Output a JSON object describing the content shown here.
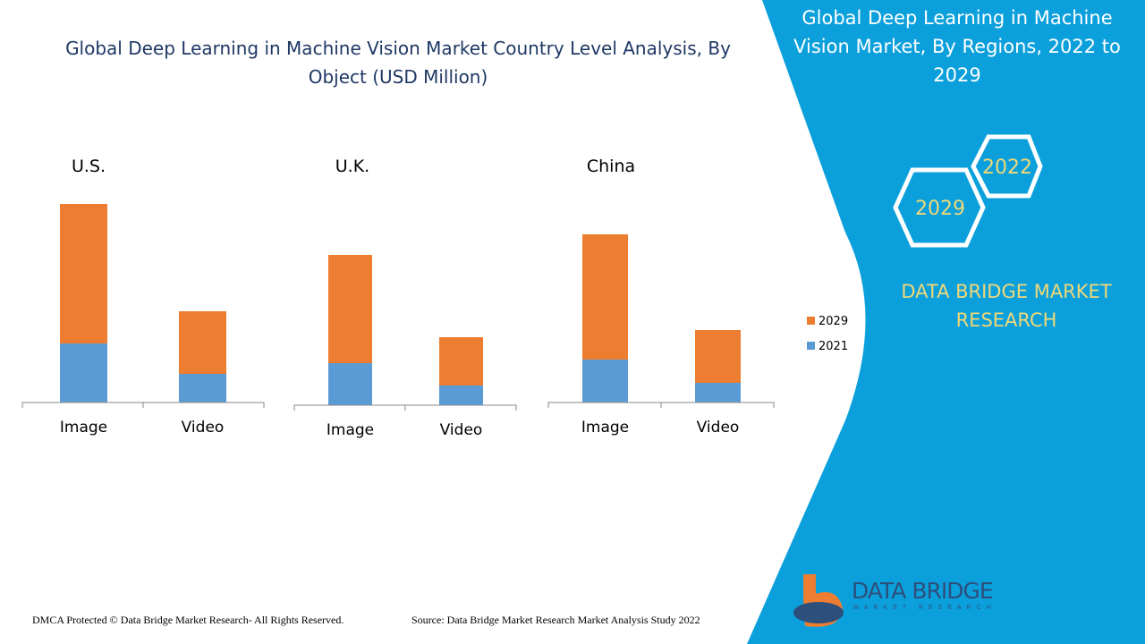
{
  "title": "Global Deep Learning in Machine Vision Market Country Level Analysis, By Object (USD Million)",
  "side_title": "Global Deep Learning in Machine Vision Market, By Regions, 2022 to 2029",
  "hex_labels": [
    "2022",
    "2029"
  ],
  "brand": "DATA BRIDGE MARKET RESEARCH",
  "logo": {
    "name": "DATA BRIDGE",
    "sub": "MARKET RESEARCH"
  },
  "footer": {
    "dmca": "DMCA Protected © Data Bridge Market Research- All Rights Reserved.",
    "source": "Source: Data Bridge Market Research Market Analysis Study 2022"
  },
  "colors": {
    "s2021": "#5b9bd5",
    "s2029": "#ed7d31",
    "panel": "#0ba0dc"
  },
  "chart_data": [
    {
      "type": "bar",
      "stacked": true,
      "title": "U.S.",
      "categories": [
        "Image",
        "Video"
      ],
      "series": [
        {
          "name": "2021",
          "values": [
            66,
            32
          ]
        },
        {
          "name": "2029",
          "values": [
            156,
            70
          ]
        }
      ],
      "note": "relative values, no axis shown"
    },
    {
      "type": "bar",
      "stacked": true,
      "title": "U.K.",
      "categories": [
        "Image",
        "Video"
      ],
      "series": [
        {
          "name": "2021",
          "values": [
            47,
            22
          ]
        },
        {
          "name": "2029",
          "values": [
            121,
            54
          ]
        }
      ]
    },
    {
      "type": "bar",
      "stacked": true,
      "title": "China",
      "categories": [
        "Image",
        "Video"
      ],
      "series": [
        {
          "name": "2021",
          "values": [
            48,
            22
          ]
        },
        {
          "name": "2029",
          "values": [
            140,
            59
          ]
        }
      ]
    }
  ],
  "legend": [
    "2029",
    "2021"
  ]
}
